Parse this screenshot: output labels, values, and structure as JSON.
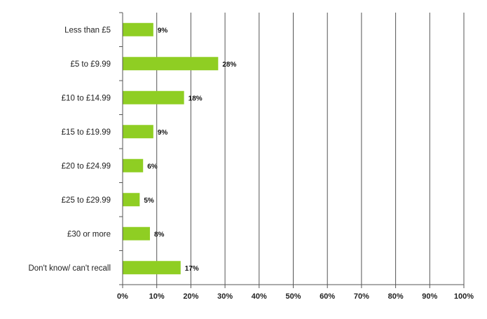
{
  "chart_data": {
    "type": "bar",
    "orientation": "horizontal",
    "categories": [
      "Less than £5",
      "£5 to £9.99",
      "£10 to £14.99",
      "£15 to £19.99",
      "£20 to £24.99",
      "£25 to £29.99",
      "£30 or more",
      "Don't know/ can't recall"
    ],
    "values": [
      9,
      28,
      18,
      9,
      6,
      5,
      8,
      17
    ],
    "value_labels": [
      "9%",
      "28%",
      "18%",
      "9%",
      "6%",
      "5%",
      "8%",
      "17%"
    ],
    "x_ticks": [
      "0%",
      "10%",
      "20%",
      "30%",
      "40%",
      "50%",
      "60%",
      "70%",
      "80%",
      "90%",
      "100%"
    ],
    "xlim": [
      0,
      100
    ],
    "grid": "vertical",
    "legend": "none",
    "bar_color": "#8fce23",
    "grid_color": "#555555"
  }
}
